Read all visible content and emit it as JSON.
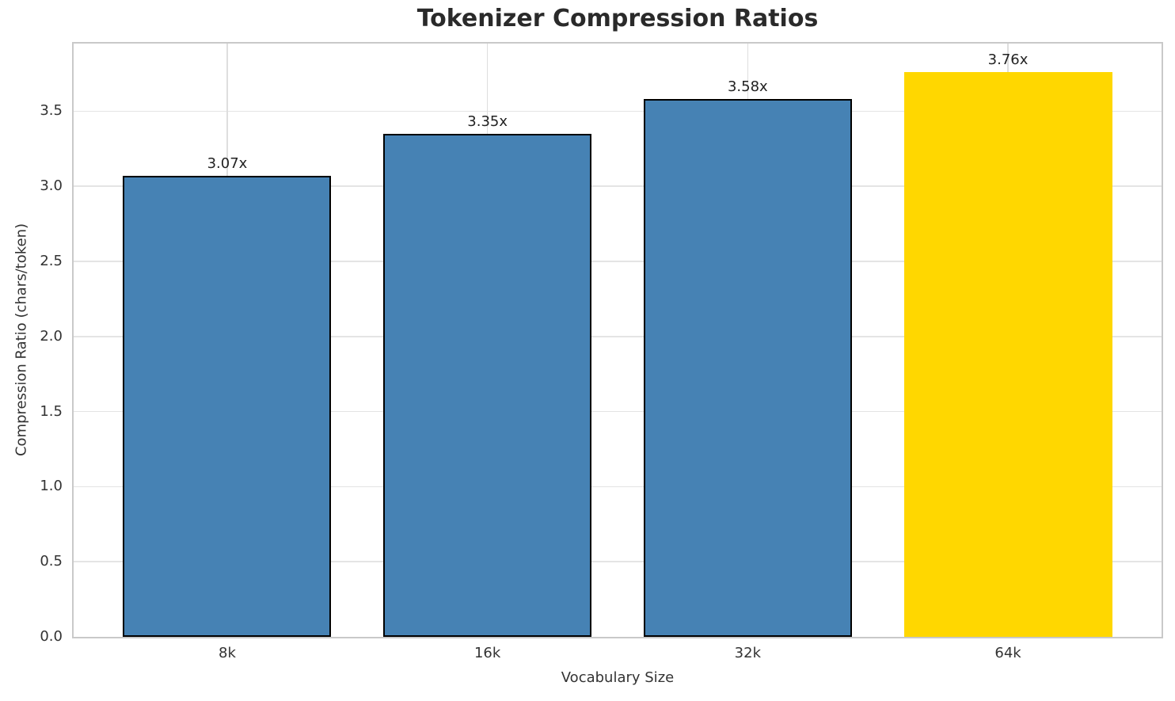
{
  "chart_data": {
    "type": "bar",
    "title": "Tokenizer Compression Ratios",
    "xlabel": "Vocabulary Size",
    "ylabel": "Compression Ratio (chars/token)",
    "categories": [
      "8k",
      "16k",
      "32k",
      "64k"
    ],
    "values": [
      3.07,
      3.35,
      3.58,
      3.76
    ],
    "value_labels": [
      "3.07x",
      "3.35x",
      "3.58x",
      "3.76x"
    ],
    "bar_colors": [
      "#4682B4",
      "#4682B4",
      "#4682B4",
      "#FFD700"
    ],
    "bar_edge_colors": [
      "#000000",
      "#000000",
      "#000000",
      "none"
    ],
    "highlighted_category": "64k",
    "ylim": [
      0,
      3.95
    ],
    "xlim": [
      -0.59,
      3.59
    ],
    "bar_width": 0.8,
    "yticks": [
      0.0,
      0.5,
      1.0,
      1.5,
      2.0,
      2.5,
      3.0,
      3.5
    ],
    "ytick_labels": [
      "0.0",
      "0.5",
      "1.0",
      "1.5",
      "2.0",
      "2.5",
      "3.0",
      "3.5"
    ],
    "grid": true,
    "legend": null,
    "background_color": "#ffffff",
    "grid_color": "#e4e4e4",
    "spine_color": "#c9c9c9"
  }
}
